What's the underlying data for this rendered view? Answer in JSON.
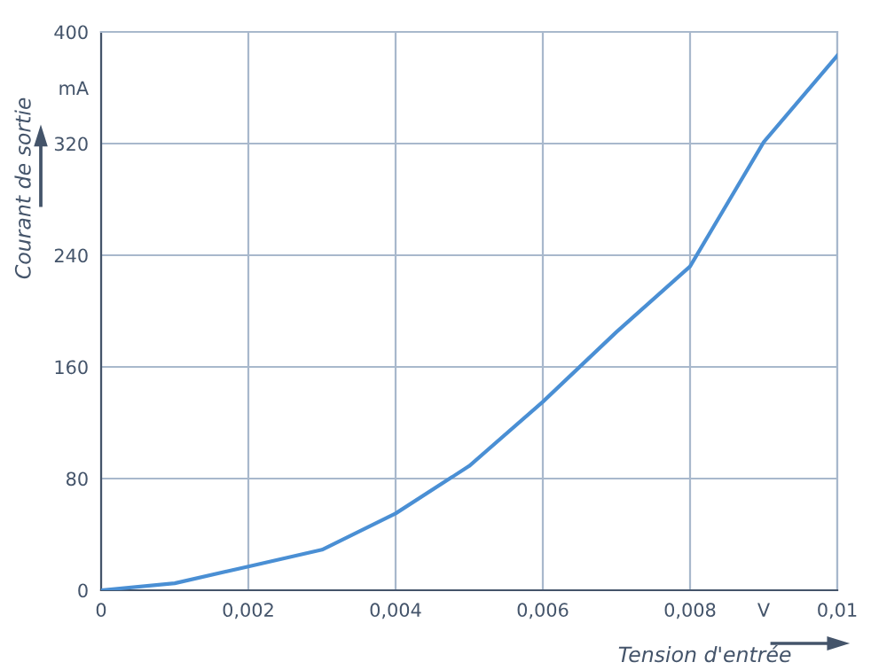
{
  "chart_data": {
    "type": "line",
    "xlabel": "Tension d'entrée",
    "ylabel": "Courant de sortie",
    "x": [
      0,
      0.001,
      0.002,
      0.003,
      0.004,
      0.005,
      0.006,
      0.007,
      0.008,
      0.009,
      0.01
    ],
    "series": [
      {
        "color": "#4a8fd4",
        "values": [
          0,
          5,
          17,
          29,
          55,
          89,
          135,
          185,
          232,
          321,
          383
        ]
      }
    ],
    "xlim": [
      0,
      0.01
    ],
    "ylim": [
      0,
      400
    ],
    "xticks": [
      0,
      {
        "value": 0.002,
        "label": "0,002"
      },
      {
        "value": 0.004,
        "label": "0,004"
      },
      {
        "value": 0.006,
        "label": "0,006"
      },
      {
        "value": 0.008,
        "label": "0,008"
      },
      {
        "value": 0.009,
        "label": "V"
      },
      {
        "value": 0.01,
        "label": "0,01"
      }
    ],
    "yticks": [
      0,
      80,
      160,
      240,
      320,
      {
        "value": 360,
        "label": "mA"
      },
      400
    ],
    "grid": true,
    "marker": "none",
    "line_style": "solid"
  }
}
